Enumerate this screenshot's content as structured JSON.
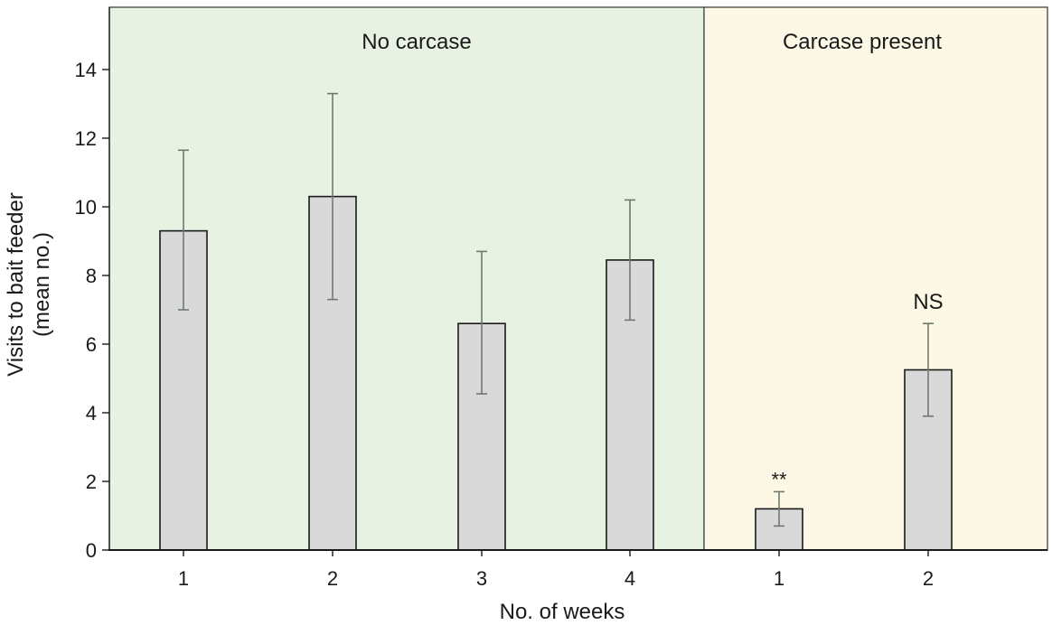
{
  "chart_data": {
    "type": "bar",
    "xlabel": "No. of weeks",
    "ylabel_lines": [
      "Visits to bait feeder",
      "(mean no.)"
    ],
    "ylim": [
      0,
      15.5
    ],
    "yticks": [
      0,
      2,
      4,
      6,
      8,
      10,
      12,
      14
    ],
    "grid": false,
    "panels": [
      {
        "label": "No carcase",
        "background": "#e8f2e2"
      },
      {
        "label": "Carcase present",
        "background": "#fdf8e6"
      }
    ],
    "bars": [
      {
        "panel": 0,
        "category": "1",
        "value": 9.3,
        "err_low": 7.0,
        "err_high": 11.65,
        "annotation": ""
      },
      {
        "panel": 0,
        "category": "2",
        "value": 10.3,
        "err_low": 7.3,
        "err_high": 13.3,
        "annotation": ""
      },
      {
        "panel": 0,
        "category": "3",
        "value": 6.6,
        "err_low": 4.55,
        "err_high": 8.7,
        "annotation": ""
      },
      {
        "panel": 0,
        "category": "4",
        "value": 8.45,
        "err_low": 6.7,
        "err_high": 10.2,
        "annotation": ""
      },
      {
        "panel": 1,
        "category": "1",
        "value": 1.2,
        "err_low": 0.7,
        "err_high": 1.7,
        "annotation": "**"
      },
      {
        "panel": 1,
        "category": "2",
        "value": 5.25,
        "err_low": 3.9,
        "err_high": 6.6,
        "annotation": "NS"
      }
    ],
    "colors": {
      "bar_fill": "#d9d9d9",
      "bar_stroke": "#1a1a1a",
      "error_bar": "#6e7a6e",
      "axis": "#1a1a1a"
    }
  }
}
